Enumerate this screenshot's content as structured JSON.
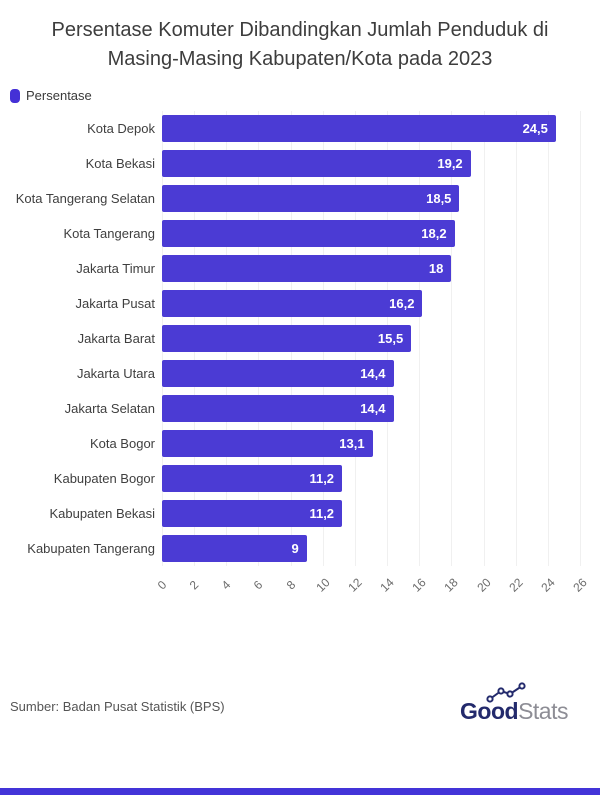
{
  "title": "Persentase Komuter Dibandingkan Jumlah Penduduk di Masing-Masing Kabupaten/Kota pada 2023",
  "legend": {
    "label": "Persentase"
  },
  "chart_data": {
    "type": "bar",
    "orientation": "horizontal",
    "title": "Persentase Komuter Dibandingkan Jumlah Penduduk di Masing-Masing Kabupaten/Kota pada 2023",
    "categories": [
      "Kota Depok",
      "Kota Bekasi",
      "Kota Tangerang Selatan",
      "Kota Tangerang",
      "Jakarta Timur",
      "Jakarta Pusat",
      "Jakarta Barat",
      "Jakarta Utara",
      "Jakarta Selatan",
      "Kota Bogor",
      "Kabupaten Bogor",
      "Kabupaten Bekasi",
      "Kabupaten Tangerang"
    ],
    "values": [
      24.5,
      19.2,
      18.5,
      18.2,
      18,
      16.2,
      15.5,
      14.4,
      14.4,
      13.1,
      11.2,
      11.2,
      9
    ],
    "value_labels": [
      "24,5",
      "19,2",
      "18,5",
      "18,2",
      "18",
      "16,2",
      "15,5",
      "14,4",
      "14,4",
      "13,1",
      "11,2",
      "11,2",
      "9"
    ],
    "series_name": "Persentase",
    "xlabel": "",
    "ylabel": "",
    "xlim": [
      0,
      26
    ],
    "x_ticks": [
      0,
      2,
      4,
      6,
      8,
      10,
      12,
      14,
      16,
      18,
      20,
      22,
      24,
      26
    ],
    "grid": true,
    "legend_position": "top-left"
  },
  "colors": {
    "bar": "#4b3bd4",
    "legend_swatch": "#4430d6",
    "gridline": "#f0f0f0",
    "bottom_strip": "#4334d8",
    "logo_navy": "#232a6c",
    "logo_gray": "#8d8d95"
  },
  "footer": {
    "source": "Sumber: Badan Pusat Statistik (BPS)",
    "logo_bold": "Good",
    "logo_light": "Stats"
  }
}
